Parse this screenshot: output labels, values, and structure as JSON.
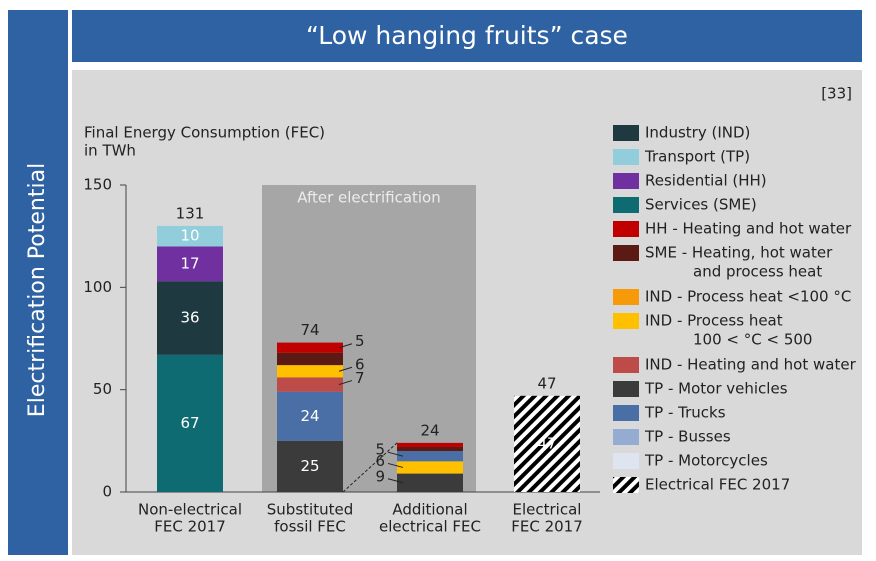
{
  "chart_data": {
    "type": "bar",
    "title": "“Low hanging fruits” case",
    "side_title": "Electrification Potential",
    "source": "[33]",
    "annotation": "After electrification",
    "ylabel": [
      "Final Energy Consumption (FEC)",
      "in TWh"
    ],
    "categories": [
      [
        "Non-electrical",
        "FEC 2017"
      ],
      [
        "Substituted",
        "fossil FEC"
      ],
      [
        "Additional",
        "electrical FEC"
      ],
      [
        "Electrical",
        "FEC 2017"
      ]
    ],
    "totals": [
      131,
      74,
      24,
      47
    ],
    "ylim": [
      0,
      150
    ],
    "yticks": [
      0,
      50,
      100,
      150
    ],
    "stacked": true,
    "series": [
      {
        "name": [
          "Industry (IND)"
        ],
        "color": "#1e3a40",
        "values": [
          36,
          null,
          null,
          null
        ]
      },
      {
        "name": [
          "Transport (TP)"
        ],
        "color": "#92cddc",
        "values": [
          10,
          null,
          null,
          null
        ]
      },
      {
        "name": [
          "Residential (HH)"
        ],
        "color": "#7030a0",
        "values": [
          17,
          null,
          null,
          null
        ]
      },
      {
        "name": [
          "Services (SME)"
        ],
        "color": "#0f6b72",
        "values": [
          67,
          null,
          null,
          null
        ]
      },
      {
        "name": [
          "HH   - Heating and hot water"
        ],
        "color": "#c00000",
        "values": [
          null,
          5,
          2,
          null
        ]
      },
      {
        "name": [
          "SME - Heating, hot water",
          "and process heat"
        ],
        "color": "#5c1a14",
        "values": [
          null,
          6,
          2,
          null
        ]
      },
      {
        "name": [
          "IND  - Process heat <100 °C"
        ],
        "color": "#f79a0a",
        "values": [
          null,
          null,
          null,
          null
        ]
      },
      {
        "name": [
          "IND  - Process heat",
          "100 < °C < 500"
        ],
        "color": "#ffc000",
        "values": [
          null,
          6,
          6,
          null
        ]
      },
      {
        "name": [
          "IND  - Heating and hot water"
        ],
        "color": "#bd4b48",
        "values": [
          null,
          7,
          null,
          null
        ]
      },
      {
        "name": [
          "TP - Motor vehicles"
        ],
        "color": "#3b3b3b",
        "values": [
          null,
          25,
          9,
          null
        ]
      },
      {
        "name": [
          "TP - Trucks"
        ],
        "color": "#4a6ea6",
        "values": [
          null,
          24,
          5,
          null
        ]
      },
      {
        "name": [
          "TP - Busses"
        ],
        "color": "#95acd2",
        "values": [
          null,
          null,
          null,
          null
        ]
      },
      {
        "name": [
          "TP - Motorcycles"
        ],
        "color": "#dfe5f0",
        "values": [
          null,
          null,
          null,
          null
        ]
      },
      {
        "name": [
          "Electrical FEC 2017"
        ],
        "color": "#000000",
        "hatch": true,
        "values": [
          null,
          null,
          null,
          47
        ]
      }
    ]
  }
}
